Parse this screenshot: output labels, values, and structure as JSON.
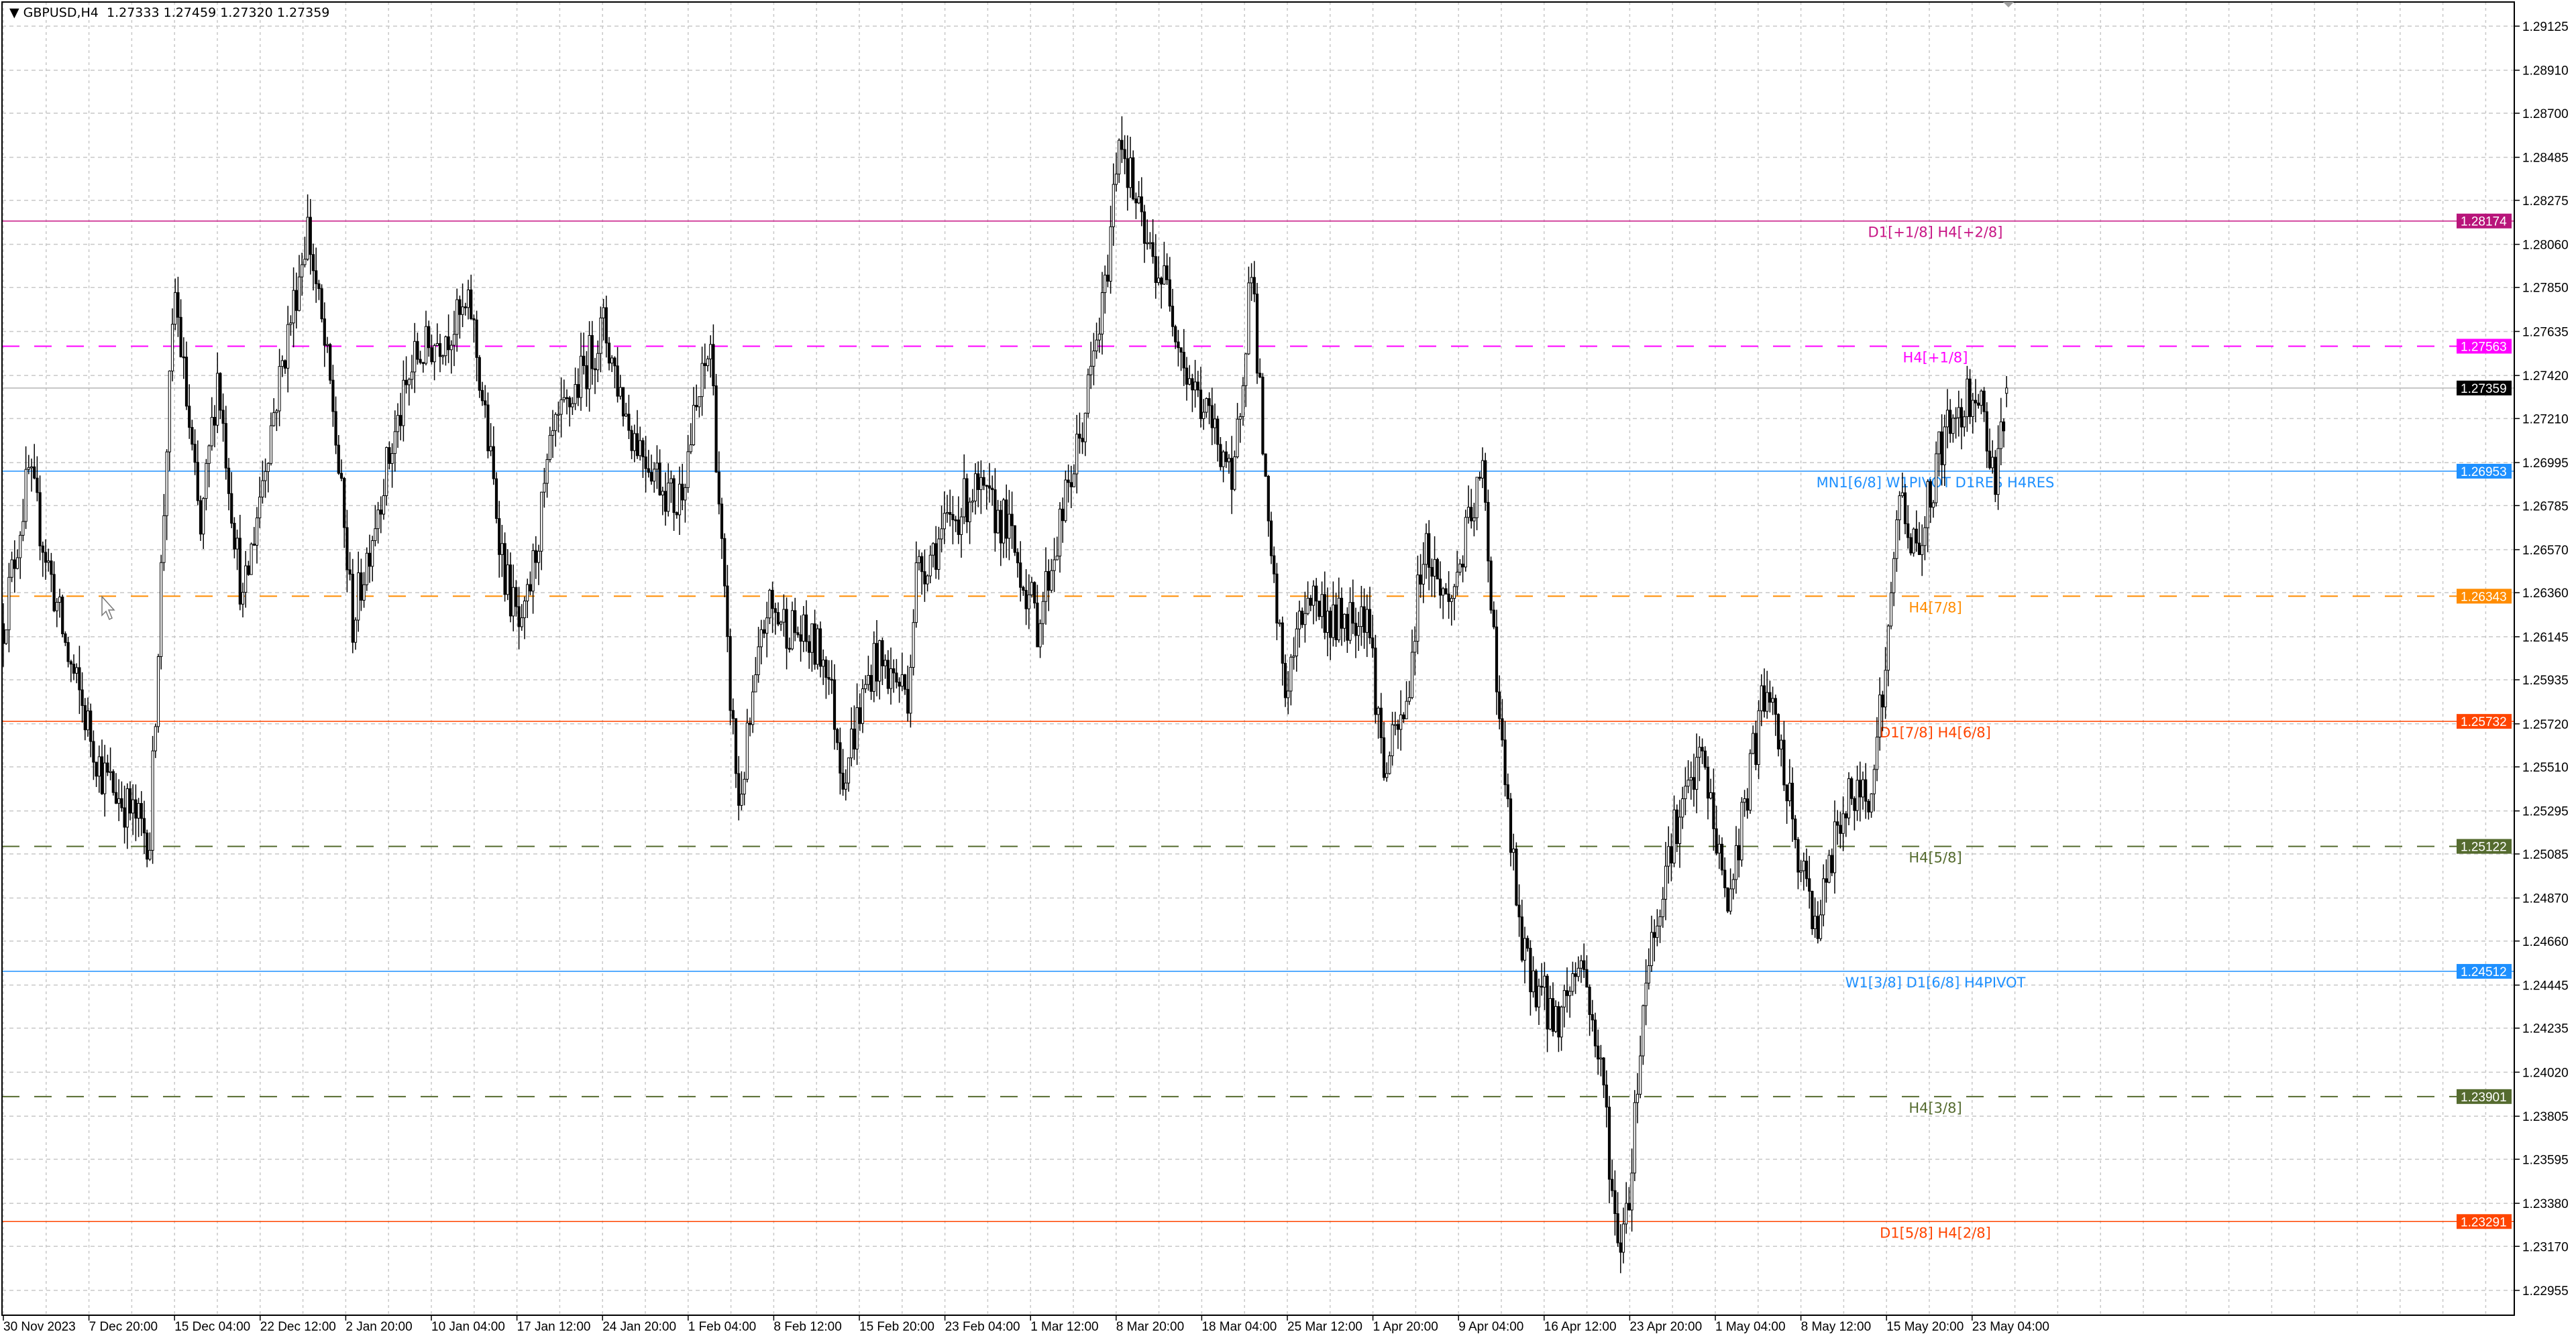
{
  "header": {
    "symbol": "GBPUSD,H4",
    "ohlc": "1.27333 1.27459 1.27320 1.27359",
    "menu_icon": "triangle-down-icon"
  },
  "chart_data": {
    "type": "candlestick",
    "symbol": "GBPUSD",
    "timeframe": "H4",
    "ylim": [
      1.2285,
      1.2925
    ],
    "grid": true,
    "current_price": 1.27359,
    "price_ticks": [
      "1.29125",
      "1.28910",
      "1.28700",
      "1.28485",
      "1.28275",
      "1.28060",
      "1.27850",
      "1.27635",
      "1.27420",
      "1.27210",
      "1.26995",
      "1.26785",
      "1.26570",
      "1.26360",
      "1.26145",
      "1.25935",
      "1.25720",
      "1.25510",
      "1.25295",
      "1.25085",
      "1.24870",
      "1.24660",
      "1.24445",
      "1.24235",
      "1.24020",
      "1.23805",
      "1.23595",
      "1.23380",
      "1.23170",
      "1.22955"
    ],
    "time_labels": [
      "30 Nov 2023",
      "7 Dec 20:00",
      "15 Dec 04:00",
      "22 Dec 12:00",
      "2 Jan 20:00",
      "10 Jan 04:00",
      "17 Jan 12:00",
      "24 Jan 20:00",
      "1 Feb 04:00",
      "8 Feb 12:00",
      "15 Feb 20:00",
      "23 Feb 04:00",
      "1 Mar 12:00",
      "8 Mar 20:00",
      "18 Mar 04:00",
      "25 Mar 12:00",
      "1 Apr 20:00",
      "9 Apr 04:00",
      "16 Apr 12:00",
      "23 Apr 20:00",
      "1 May 04:00",
      "8 May 12:00",
      "15 May 20:00",
      "23 May 04:00"
    ],
    "close_path": [
      [
        1,
        1.2629
      ],
      [
        9,
        1.2694
      ],
      [
        23,
        1.2604
      ],
      [
        35,
        1.2548
      ],
      [
        52,
        1.2516
      ],
      [
        58,
        1.271
      ],
      [
        61,
        1.2782
      ],
      [
        70,
        1.2663
      ],
      [
        76,
        1.2743
      ],
      [
        85,
        1.2629
      ],
      [
        93,
        1.2702
      ],
      [
        108,
        1.2815
      ],
      [
        117,
        1.2726
      ],
      [
        124,
        1.2621
      ],
      [
        134,
        1.2686
      ],
      [
        146,
        1.275
      ],
      [
        166,
        1.2774
      ],
      [
        178,
        1.2645
      ],
      [
        184,
        1.2613
      ],
      [
        195,
        1.271
      ],
      [
        213,
        1.2766
      ],
      [
        222,
        1.2718
      ],
      [
        239,
        1.2678
      ],
      [
        251,
        1.2758
      ],
      [
        257,
        1.2604
      ],
      [
        261,
        1.2532
      ],
      [
        271,
        1.2629
      ],
      [
        292,
        1.2604
      ],
      [
        298,
        1.2548
      ],
      [
        309,
        1.2604
      ],
      [
        321,
        1.2588
      ],
      [
        324,
        1.2645
      ],
      [
        344,
        1.2686
      ],
      [
        356,
        1.2669
      ],
      [
        367,
        1.2621
      ],
      [
        382,
        1.271
      ],
      [
        391,
        1.2782
      ],
      [
        396,
        1.2863
      ],
      [
        405,
        1.2807
      ],
      [
        414,
        1.2782
      ],
      [
        420,
        1.2743
      ],
      [
        434,
        1.2702
      ],
      [
        436,
        1.2678
      ],
      [
        443,
        1.2799
      ],
      [
        449,
        1.2661
      ],
      [
        455,
        1.2588
      ],
      [
        463,
        1.2637
      ],
      [
        472,
        1.2621
      ],
      [
        484,
        1.2629
      ],
      [
        490,
        1.2548
      ],
      [
        498,
        1.258
      ],
      [
        504,
        1.2661
      ],
      [
        513,
        1.2629
      ],
      [
        525,
        1.2694
      ],
      [
        528,
        1.2637
      ],
      [
        532,
        1.2556
      ],
      [
        539,
        1.2459
      ],
      [
        551,
        1.2426
      ],
      [
        560,
        1.2459
      ],
      [
        568,
        1.2394
      ],
      [
        573,
        1.2313
      ],
      [
        577,
        1.2345
      ],
      [
        583,
        1.2451
      ],
      [
        592,
        1.2516
      ],
      [
        603,
        1.2556
      ],
      [
        612,
        1.2483
      ],
      [
        618,
        1.2532
      ],
      [
        625,
        1.2588
      ],
      [
        630,
        1.2564
      ],
      [
        638,
        1.2499
      ],
      [
        644,
        1.2475
      ],
      [
        653,
        1.2532
      ],
      [
        662,
        1.254
      ],
      [
        668,
        1.2596
      ],
      [
        673,
        1.2686
      ],
      [
        679,
        1.2653
      ],
      [
        688,
        1.271
      ],
      [
        700,
        1.2738
      ],
      [
        707,
        1.2694
      ],
      [
        711,
        1.27359
      ]
    ],
    "levels": [
      {
        "price": 1.28174,
        "label": "D1[+1/8] H4[+2/8]",
        "tag": "1.28174",
        "color": "#c71585",
        "tag_color": "#b8147a",
        "style": "solid"
      },
      {
        "price": 1.27563,
        "label": "H4[+1/8]",
        "tag": "1.27563",
        "color": "#ff00ff",
        "tag_color": "#ff00ff",
        "style": "dashed"
      },
      {
        "price": 1.26953,
        "label": "MN1[6/8] W1PIVOT D1RES H4RES",
        "tag": "1.26953",
        "color": "#1e90ff",
        "tag_color": "#1e90ff",
        "style": "solid"
      },
      {
        "price": 1.26343,
        "label": "H4[7/8]",
        "tag": "1.26343",
        "color": "#ff8c00",
        "tag_color": "#ff8c00",
        "style": "dashed"
      },
      {
        "price": 1.25732,
        "label": "D1[7/8] H4[6/8]",
        "tag": "1.25732",
        "color": "#ff4500",
        "tag_color": "#ff4500",
        "style": "solid"
      },
      {
        "price": 1.25122,
        "label": "H4[5/8]",
        "tag": "1.25122",
        "color": "#556b2f",
        "tag_color": "#556b2f",
        "style": "dashed"
      },
      {
        "price": 1.24512,
        "label": "W1[3/8] D1[6/8] H4PIVOT",
        "tag": "1.24512",
        "color": "#1e90ff",
        "tag_color": "#1e90ff",
        "style": "solid"
      },
      {
        "price": 1.23901,
        "label": "H4[3/8]",
        "tag": "1.23901",
        "color": "#556b2f",
        "tag_color": "#556b2f",
        "style": "dashed"
      },
      {
        "price": 1.23291,
        "label": "D1[5/8] H4[2/8]",
        "tag": "1.23291",
        "color": "#ff4500",
        "tag_color": "#ff4500",
        "style": "solid"
      }
    ],
    "current_tag": {
      "price": 1.27359,
      "tag": "1.27359",
      "color": "#000000"
    },
    "colors": {
      "bull_body": "#ffffff",
      "bear_body": "#000000",
      "wick": "#000000",
      "grid": "#c8c8c8",
      "background": "#ffffff"
    }
  }
}
